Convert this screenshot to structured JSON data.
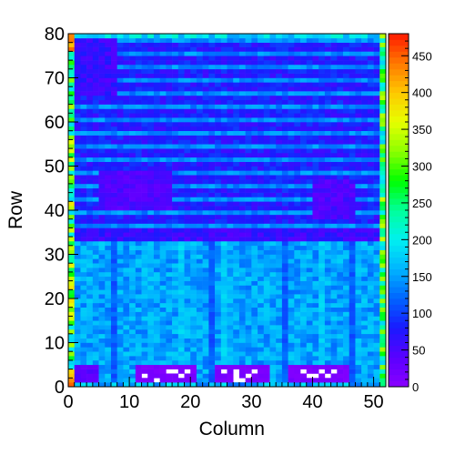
{
  "chart_data": {
    "type": "heatmap",
    "title": "",
    "xlabel": "Column",
    "ylabel": "Row",
    "xlim": [
      0,
      52
    ],
    "ylim": [
      0,
      80
    ],
    "zlim": [
      0,
      480
    ],
    "x_ticks": [
      0,
      10,
      20,
      30,
      40,
      50
    ],
    "y_ticks": [
      0,
      10,
      20,
      30,
      40,
      50,
      60,
      70,
      80
    ],
    "z_ticks": [
      0,
      50,
      100,
      150,
      200,
      250,
      300,
      350,
      400,
      450
    ],
    "colormap": "rainbow",
    "colormap_stops": [
      "#8a00ff",
      "#5a00ff",
      "#1a1aff",
      "#0064ff",
      "#00b4ff",
      "#00f0f0",
      "#00ff9a",
      "#00ff00",
      "#8cff00",
      "#e6ff00",
      "#ffc800",
      "#ff7800",
      "#ff1a00"
    ],
    "grid": false,
    "bins": {
      "columns": 52,
      "rows": 80
    },
    "description": {
      "upper_region_rows_34_80": "mostly blue (~50-110) with alternating brighter stripes (~130-160) every few rows",
      "lower_region_rows_0_33": "brighter cyan/light-blue (~120-190) with vertical column structure",
      "edge_columns": "column 0 and column 51 high (~200-450, green/yellow)",
      "low_blocks_rows_1_4": "three dark violet blocks at columns 11-20, 24-32, 36-45 (~0-20) with white empty bins"
    }
  }
}
